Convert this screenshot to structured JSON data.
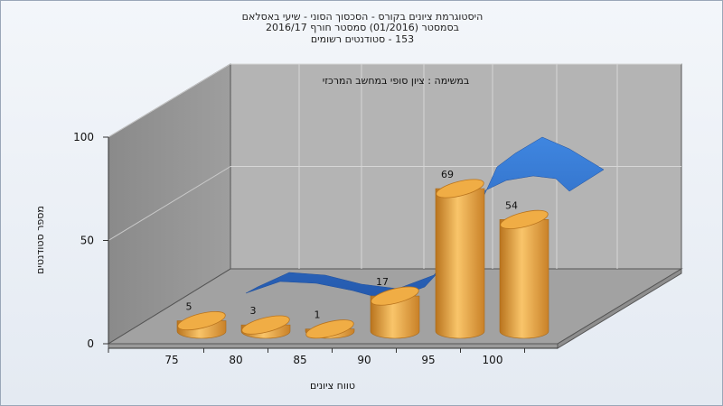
{
  "title_lines": [
    "היסטוגרמת ציונים בקורס - הסכסוך הסוני - שיעי באסלאם",
    "בסמסטר  (01/2016)  סמסטר חורף 2016/17",
    "153 - סטודנטים רשומים"
  ],
  "chart_data": {
    "type": "bar",
    "title": "היסטוגרמת ציונים בקורס - הסכסוך הסוני - שיעי באסלאם",
    "subtitle": "בסמסטר  (01/2016)  סמסטר חורף 2016/17 | 153 - סטודנטים רשומים",
    "annotation": "במשימה : ציון סופי במחשב המרכזי",
    "xlabel": "טווח ציונים",
    "ylabel": "מספר סטודנטים",
    "categories": [
      "75",
      "80",
      "85",
      "90",
      "95",
      "100"
    ],
    "values": [
      5,
      3,
      1,
      17,
      69,
      54
    ],
    "ylim": [
      0,
      100
    ],
    "yticks": [
      0,
      50,
      100
    ],
    "xticks": [
      "75",
      "80",
      "85",
      "90",
      "95",
      "100"
    ],
    "overlay_curve": {
      "shape": "ribbon",
      "color": "#2f6ec7"
    },
    "bar_color": "#e8a23c",
    "grid": true
  }
}
